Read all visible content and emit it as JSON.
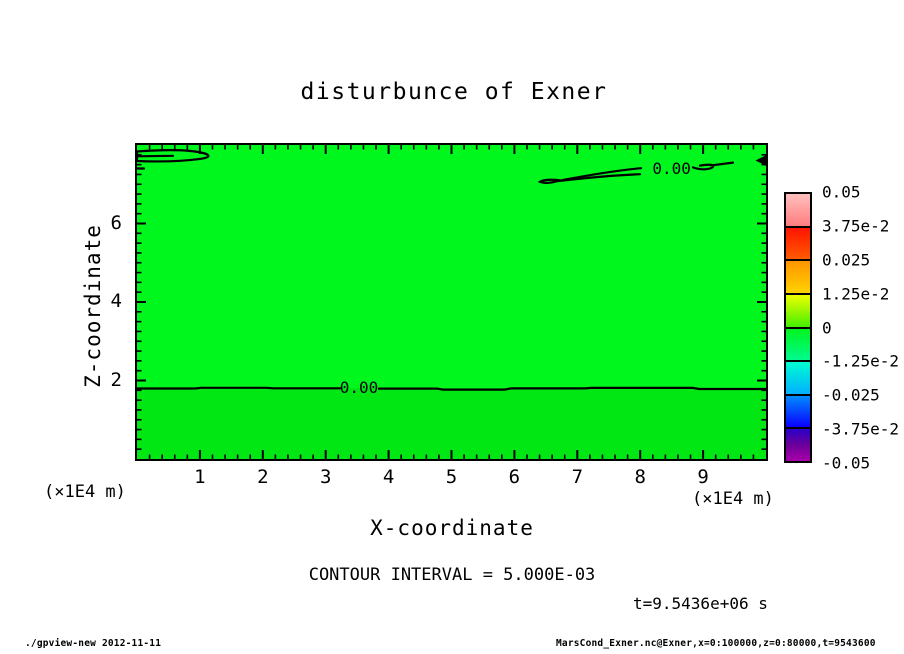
{
  "title": "disturbunce of Exner",
  "axes": {
    "x_label": "X-coordinate",
    "y_label": "Z-coordinate",
    "x_unit": "(×1E4 m)",
    "y_unit": "(×1E4 m)"
  },
  "annotations": {
    "contour_interval": "CONTOUR INTERVAL = 5.000E-03",
    "time_label": "t=9.5436e+06 s"
  },
  "footer": {
    "left": "./gpview-new  2012-11-11",
    "right": "MarsCond_Exner.nc@Exner,x=0:100000,z=0:80000,t=9543600"
  },
  "chart_data": {
    "type": "heatmap",
    "subtype": "filled-contour",
    "title": "disturbunce of Exner",
    "xlabel": "X-coordinate",
    "ylabel": "Z-coordinate",
    "axis_unit": "(×1E4 m)",
    "xlim": [
      0,
      10
    ],
    "ylim": [
      0,
      8
    ],
    "x_major_ticks": [
      1,
      2,
      3,
      4,
      5,
      6,
      7,
      8,
      9
    ],
    "x_minor_step": 0.2,
    "y_major_ticks": [
      2,
      4,
      6
    ],
    "y_minor_step": 0.25,
    "contour_interval": 0.005,
    "time_seconds": "9.5436e+06",
    "field_summary": "Exner function disturbance is ~0 over the whole domain (single green fill level). A zero contour runs horizontally across the full width at z≈1.8e4 m; thin elongated zero-contour slivers sit near z≈7.4-7.8e4 m at upper-left and upper-right.",
    "zero_line_z": 1.81,
    "contour_labels": [
      {
        "text": "0.00",
        "x": 3.53,
        "z": 1.83
      },
      {
        "text": "0.00",
        "x": 8.5,
        "z": 7.42
      }
    ],
    "fill_colors": {
      "above_zero": "#00f71d",
      "below_zero": "#00e713"
    },
    "colorbar": {
      "boundary_labels": [
        "0.05",
        "3.75e-2",
        "0.025",
        "1.25e-2",
        "0",
        "-1.25e-2",
        "-0.025",
        "-3.75e-2",
        "-0.05"
      ],
      "cells": [
        [
          "#ffbfbf",
          "#ff7d7d"
        ],
        [
          "#ff1400",
          "#ff5a00"
        ],
        [
          "#ff9400",
          "#ffd300"
        ],
        [
          "#edff00",
          "#45f000"
        ],
        [
          "#00f51e",
          "#00fa8e"
        ],
        [
          "#00fcd2",
          "#00b0ff"
        ],
        [
          "#008cff",
          "#0a00ff"
        ],
        [
          "#2b00c8",
          "#6b0099",
          "#aa00aa"
        ]
      ]
    }
  }
}
